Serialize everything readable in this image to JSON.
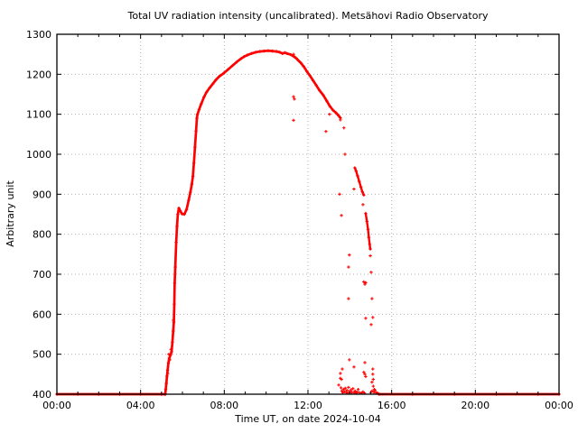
{
  "window": {
    "background": "#ffffff"
  },
  "chart_data": {
    "type": "scatter",
    "title": "Total UV radiation intensity (uncalibrated). Metsähovi Radio Observatory",
    "date_shown": "2024-10-04",
    "x_axis": {
      "label": "Time UT, on date 2024-10-04",
      "range_hours": [
        0,
        24
      ],
      "major_ticks": [
        {
          "t": 0,
          "label": "00:00"
        },
        {
          "t": 4,
          "label": "04:00"
        },
        {
          "t": 8,
          "label": "08:00"
        },
        {
          "t": 12,
          "label": "12:00"
        },
        {
          "t": 16,
          "label": "16:00"
        },
        {
          "t": 20,
          "label": "20:00"
        },
        {
          "t": 24,
          "label": "00:00"
        }
      ],
      "minor_tick_interval_hours": 1
    },
    "y_axis": {
      "label": "Arbitrary unit",
      "range": [
        400,
        1300
      ],
      "major_ticks": [
        400,
        500,
        600,
        700,
        800,
        900,
        1000,
        1100,
        1200,
        1300
      ]
    },
    "grid": {
      "show": true,
      "style": "dotted",
      "color": "#b0b0b0"
    },
    "marker": {
      "shape": "plus",
      "color": "#ff0000"
    },
    "series": [
      {
        "name": "baseline-morning",
        "render": "dense",
        "width": 2.8,
        "points": [
          [
            0.0,
            400
          ],
          [
            1.0,
            400
          ],
          [
            2.0,
            400
          ],
          [
            3.0,
            400
          ],
          [
            4.0,
            400
          ],
          [
            5.0,
            400
          ],
          [
            5.18,
            400
          ]
        ]
      },
      {
        "name": "main-sun-curve",
        "render": "dense",
        "width": 2.7,
        "points": [
          [
            5.18,
            400
          ],
          [
            5.2,
            412
          ],
          [
            5.23,
            427
          ],
          [
            5.26,
            445
          ],
          [
            5.29,
            460
          ],
          [
            5.33,
            478
          ],
          [
            5.37,
            490
          ],
          [
            5.43,
            498
          ],
          [
            5.48,
            506
          ],
          [
            5.52,
            530
          ],
          [
            5.56,
            558
          ],
          [
            5.59,
            580
          ],
          [
            5.61,
            625
          ],
          [
            5.63,
            678
          ],
          [
            5.66,
            718
          ],
          [
            5.7,
            780
          ],
          [
            5.74,
            820
          ],
          [
            5.78,
            850
          ],
          [
            5.83,
            865
          ],
          [
            5.9,
            858
          ],
          [
            5.98,
            851
          ],
          [
            6.09,
            850
          ],
          [
            6.2,
            862
          ],
          [
            6.3,
            885
          ],
          [
            6.38,
            905
          ],
          [
            6.45,
            925
          ],
          [
            6.5,
            945
          ],
          [
            6.55,
            978
          ],
          [
            6.6,
            1018
          ],
          [
            6.65,
            1058
          ],
          [
            6.69,
            1090
          ],
          [
            6.72,
            1100
          ],
          [
            6.8,
            1112
          ],
          [
            6.9,
            1126
          ],
          [
            7.03,
            1143
          ],
          [
            7.15,
            1155
          ],
          [
            7.3,
            1166
          ],
          [
            7.45,
            1176
          ],
          [
            7.6,
            1186
          ],
          [
            7.75,
            1194
          ],
          [
            7.98,
            1203
          ],
          [
            8.2,
            1213
          ],
          [
            8.4,
            1222
          ],
          [
            8.6,
            1231
          ],
          [
            8.8,
            1239
          ],
          [
            8.95,
            1244
          ],
          [
            9.1,
            1248
          ],
          [
            9.3,
            1252
          ],
          [
            9.5,
            1255
          ],
          [
            9.7,
            1257
          ],
          [
            9.9,
            1258
          ],
          [
            10.1,
            1259
          ],
          [
            10.3,
            1258
          ],
          [
            10.5,
            1257
          ],
          [
            10.65,
            1255
          ],
          [
            10.78,
            1252
          ],
          [
            10.9,
            1254
          ],
          [
            11.0,
            1252
          ],
          [
            11.18,
            1249
          ],
          [
            11.31,
            1245
          ],
          [
            11.44,
            1240
          ],
          [
            11.55,
            1234
          ],
          [
            11.65,
            1229
          ],
          [
            11.8,
            1219
          ],
          [
            11.95,
            1207
          ],
          [
            12.1,
            1196
          ],
          [
            12.25,
            1184
          ],
          [
            12.4,
            1172
          ],
          [
            12.55,
            1160
          ],
          [
            12.73,
            1148
          ],
          [
            12.9,
            1133
          ],
          [
            13.05,
            1120
          ],
          [
            13.2,
            1110
          ],
          [
            13.35,
            1103
          ],
          [
            13.47,
            1096
          ],
          [
            13.55,
            1091
          ]
        ]
      },
      {
        "name": "cloud-strip-1",
        "render": "dense",
        "width": 2.4,
        "points": [
          [
            14.24,
            966
          ],
          [
            14.3,
            958
          ],
          [
            14.37,
            946
          ],
          [
            14.45,
            932
          ],
          [
            14.53,
            918
          ],
          [
            14.6,
            906
          ],
          [
            14.67,
            898
          ]
        ]
      },
      {
        "name": "cloud-strip-2",
        "render": "dense",
        "width": 2.4,
        "points": [
          [
            14.76,
            852
          ],
          [
            14.82,
            832
          ],
          [
            14.87,
            812
          ],
          [
            14.91,
            792
          ],
          [
            14.95,
            775
          ],
          [
            14.98,
            763
          ]
        ]
      },
      {
        "name": "baseline-evening",
        "render": "dense",
        "width": 2.8,
        "points": [
          [
            15.4,
            400
          ],
          [
            17.0,
            400
          ],
          [
            19.0,
            400
          ],
          [
            21.0,
            400
          ],
          [
            23.0,
            400
          ],
          [
            24.0,
            400
          ]
        ]
      },
      {
        "name": "cloud-scatter",
        "render": "points",
        "points": [
          [
            5.3,
            452
          ],
          [
            5.35,
            500
          ],
          [
            5.4,
            486
          ],
          [
            5.45,
            512
          ],
          [
            5.57,
            585
          ],
          [
            11.31,
            1250
          ],
          [
            11.35,
            1244
          ],
          [
            11.31,
            1144
          ],
          [
            11.35,
            1138
          ],
          [
            11.31,
            1085
          ],
          [
            12.86,
            1057
          ],
          [
            13.03,
            1100
          ],
          [
            13.55,
            1086
          ],
          [
            13.72,
            1066
          ],
          [
            13.77,
            1000
          ],
          [
            14.2,
            913
          ],
          [
            13.51,
            900
          ],
          [
            14.63,
            874
          ],
          [
            13.6,
            847
          ],
          [
            13.98,
            748
          ],
          [
            14.98,
            746
          ],
          [
            13.94,
            718
          ],
          [
            15.02,
            705
          ],
          [
            14.67,
            681
          ],
          [
            14.72,
            675
          ],
          [
            14.76,
            679
          ],
          [
            13.94,
            639
          ],
          [
            15.06,
            639
          ],
          [
            14.76,
            590
          ],
          [
            15.1,
            592
          ],
          [
            15.02,
            574
          ],
          [
            13.98,
            486
          ],
          [
            14.72,
            479
          ],
          [
            14.2,
            468
          ],
          [
            13.64,
            463
          ],
          [
            15.1,
            463
          ],
          [
            14.67,
            455
          ],
          [
            14.72,
            450
          ],
          [
            14.76,
            444
          ],
          [
            13.55,
            452
          ],
          [
            13.55,
            440
          ],
          [
            13.6,
            437
          ],
          [
            15.1,
            450
          ],
          [
            15.12,
            437
          ],
          [
            13.47,
            423
          ],
          [
            15.06,
            430
          ],
          [
            15.12,
            420
          ],
          [
            15.17,
            412
          ],
          [
            13.58,
            416
          ],
          [
            13.62,
            408
          ],
          [
            13.66,
            404
          ],
          [
            13.7,
            412
          ],
          [
            13.74,
            406
          ],
          [
            13.78,
            415
          ],
          [
            13.82,
            405
          ],
          [
            13.86,
            410
          ],
          [
            13.9,
            403
          ],
          [
            13.94,
            417
          ],
          [
            13.98,
            407
          ],
          [
            14.02,
            404
          ],
          [
            14.06,
            411
          ],
          [
            14.1,
            405
          ],
          [
            14.15,
            414
          ],
          [
            14.2,
            404
          ],
          [
            14.25,
            408
          ],
          [
            14.3,
            403
          ],
          [
            14.35,
            405
          ],
          [
            14.4,
            412
          ],
          [
            14.45,
            404
          ],
          [
            14.55,
            403
          ],
          [
            14.63,
            406
          ],
          [
            14.7,
            403
          ],
          [
            15.0,
            404
          ],
          [
            15.06,
            408
          ],
          [
            15.15,
            405
          ],
          [
            15.2,
            410
          ],
          [
            15.25,
            404
          ],
          [
            15.3,
            403
          ],
          [
            15.35,
            402
          ]
        ]
      }
    ]
  }
}
